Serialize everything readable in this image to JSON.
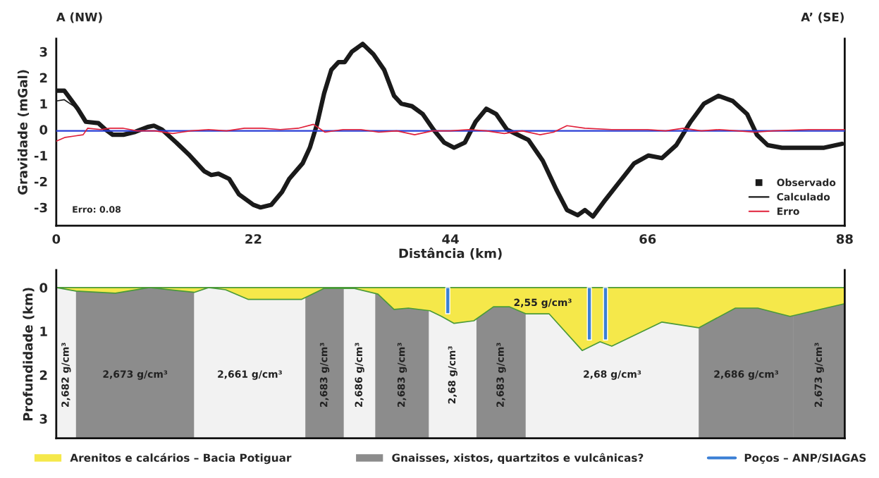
{
  "chart_data": [
    {
      "type": "line",
      "xlabel": "Distância (km)",
      "ylabel": "Gravidade (mGal)",
      "annotations": [
        "A (NW)",
        "A’ (SE)",
        "Erro: 0.08"
      ],
      "xlim": [
        0,
        88
      ],
      "ylim": [
        -3.7,
        3.5
      ],
      "xticks": [
        0,
        22,
        44,
        66,
        88
      ],
      "yticks": [
        -3,
        -2,
        -1,
        0,
        1,
        2,
        3
      ],
      "legend": "bottom right",
      "ref_lines": [
        {
          "axis": "y",
          "value": -0.05,
          "color": "#2a3fd6",
          "line_style": "solid"
        }
      ],
      "series": [
        {
          "name": "Observado",
          "color": "#1a1a1a",
          "x": [
            0,
            0.9,
            2.4,
            3.3,
            4.7,
            5.5,
            6.3,
            7.5,
            8.7,
            10.2,
            10.9,
            11.8,
            13.4,
            14.9,
            16.5,
            17.3,
            18.1,
            19.3,
            20.4,
            22.0,
            22.8,
            24.0,
            25.2,
            26.0,
            27.5,
            28.3,
            29.1,
            29.9,
            30.7,
            31.5,
            32.2,
            33.0,
            34.2,
            35.4,
            36.6,
            37.7,
            38.5,
            39.7,
            40.9,
            42.1,
            43.3,
            44.4,
            45.6,
            46.8,
            48.0,
            49.1,
            50.3,
            51.5,
            52.7,
            54.3,
            55.8,
            57.0,
            58.2,
            59.0,
            59.9,
            61.3,
            62.9,
            64.5,
            66.1,
            67.6,
            69.2,
            70.8,
            72.3,
            73.9,
            75.5,
            77.1,
            78.2,
            79.4,
            81.0,
            83.4,
            85.7,
            87.7
          ],
          "values": [
            1.5,
            1.5,
            0.8,
            0.3,
            0.25,
            0.0,
            -0.2,
            -0.2,
            -0.1,
            0.1,
            0.15,
            0.0,
            -0.5,
            -1.0,
            -1.6,
            -1.75,
            -1.7,
            -1.9,
            -2.5,
            -2.9,
            -3.0,
            -2.9,
            -2.4,
            -1.9,
            -1.3,
            -0.7,
            0.2,
            1.4,
            2.3,
            2.6,
            2.6,
            3.0,
            3.3,
            2.9,
            2.3,
            1.3,
            1.0,
            0.9,
            0.6,
            0.0,
            -0.5,
            -0.7,
            -0.5,
            0.3,
            0.8,
            0.6,
            0.0,
            -0.2,
            -0.4,
            -1.2,
            -2.3,
            -3.1,
            -3.3,
            -3.1,
            -3.35,
            -2.7,
            -2.0,
            -1.3,
            -1.0,
            -1.1,
            -0.6,
            0.3,
            1.0,
            1.3,
            1.1,
            0.6,
            -0.2,
            -0.6,
            -0.7,
            -0.7,
            -0.7,
            -0.55
          ]
        },
        {
          "name": "Calculado",
          "color": "#1a1a1a",
          "x": [
            0,
            0.9,
            2.4
          ],
          "values": [
            1.1,
            1.15,
            0.8
          ]
        },
        {
          "name": "Erro",
          "color": "#e0203a",
          "x": [
            0,
            1,
            2,
            3,
            3.5,
            5,
            6,
            7.5,
            9,
            11,
            13,
            15,
            17,
            19,
            21,
            23,
            25,
            27,
            28.7,
            30,
            32,
            34,
            36,
            38,
            40,
            42,
            44,
            46,
            48,
            50,
            52,
            54,
            55.5,
            57,
            59,
            62,
            66,
            68,
            70,
            72,
            74,
            76,
            78,
            80,
            84,
            88
          ],
          "values": [
            -0.45,
            -0.3,
            -0.25,
            -0.2,
            0.05,
            0.0,
            0.05,
            0.05,
            -0.05,
            -0.05,
            -0.15,
            -0.05,
            0.0,
            -0.05,
            0.05,
            0.05,
            0.0,
            0.05,
            0.2,
            -0.1,
            0.0,
            0.0,
            -0.1,
            -0.05,
            -0.2,
            -0.05,
            -0.05,
            0.0,
            -0.05,
            -0.15,
            -0.05,
            -0.2,
            -0.1,
            0.15,
            0.05,
            0.0,
            0.0,
            -0.05,
            0.05,
            -0.05,
            0.0,
            -0.05,
            -0.1,
            -0.05,
            0.0,
            0.0
          ]
        }
      ]
    },
    {
      "type": "area",
      "ylabel": "Profundidade (km)",
      "xlim": [
        0,
        88
      ],
      "ylim": [
        3.45,
        -0.4
      ],
      "yticks": [
        0,
        1,
        2,
        3
      ],
      "tick_labels": "y",
      "legend": "bottom",
      "bands": [
        {
          "axis": "x",
          "from": 0,
          "to": 2.2,
          "color": "#f2f2f2",
          "label": "2,682 g/cm³"
        },
        {
          "axis": "x",
          "from": 2.2,
          "to": 15.4,
          "color": "#8c8c8c",
          "label": "2,673 g/cm³"
        },
        {
          "axis": "x",
          "from": 15.4,
          "to": 27.8,
          "color": "#f2f2f2",
          "label": "2,661 g/cm³"
        },
        {
          "axis": "x",
          "from": 27.8,
          "to": 32.1,
          "color": "#8c8c8c",
          "label": "2,683 g/cm³"
        },
        {
          "axis": "x",
          "from": 32.1,
          "to": 35.6,
          "color": "#f2f2f2",
          "label": "2,686 g/cm³"
        },
        {
          "axis": "x",
          "from": 35.6,
          "to": 41.6,
          "color": "#8c8c8c",
          "label": "2,683 g/cm³"
        },
        {
          "axis": "x",
          "from": 41.6,
          "to": 46.9,
          "color": "#f2f2f2",
          "label": "2,68 g/cm³"
        },
        {
          "axis": "x",
          "from": 46.9,
          "to": 52.4,
          "color": "#8c8c8c",
          "label": "2,683 g/cm³"
        },
        {
          "axis": "x",
          "from": 52.4,
          "to": 71.7,
          "color": "#f2f2f2",
          "label": "2,68 g/cm³"
        },
        {
          "axis": "x",
          "from": 71.7,
          "to": 82.3,
          "color": "#8c8c8c",
          "label": "2,686 g/cm³"
        },
        {
          "axis": "x",
          "from": 82.3,
          "to": 88,
          "color": "#8c8c8c",
          "label": "2,673 g/cm³"
        }
      ],
      "annotations": [
        "Gnaisses, xistos, quartzitos e vulcânicas?",
        "2,55 g/cm³"
      ],
      "series": [
        {
          "name": "Arenitos e calcários – Bacia Potiguar",
          "color": "#f5e84a",
          "x": [
            0,
            2.2,
            6.6,
            10.4,
            15.4,
            17.0,
            18.9,
            21.4,
            23.9,
            27.4,
            29.9,
            33.3,
            35.9,
            37.7,
            39.3,
            41.7,
            43.0,
            44.4,
            46.6,
            48.8,
            50.6,
            52.4,
            55.0,
            58.7,
            60.7,
            62.0,
            67.6,
            71.7,
            75.8,
            78.3,
            81.9,
            88
          ],
          "values": [
            0,
            0.08,
            0.13,
            0.0,
            0.11,
            0,
            0.05,
            0.27,
            0.27,
            0.27,
            0.02,
            0.02,
            0.15,
            0.5,
            0.47,
            0.53,
            0.66,
            0.82,
            0.76,
            0.44,
            0.44,
            0.6,
            0.6,
            1.44,
            1.24,
            1.34,
            0.79,
            0.92,
            0.47,
            0.47,
            0.66,
            0.37
          ]
        },
        {
          "name": "Poços – ANP/SIAGAS",
          "type": "bar",
          "color": "#3a7fd5",
          "x": [
            43.7,
            59.5,
            61.3
          ],
          "values": [
            0.6,
            1.2,
            1.2
          ]
        }
      ]
    }
  ]
}
